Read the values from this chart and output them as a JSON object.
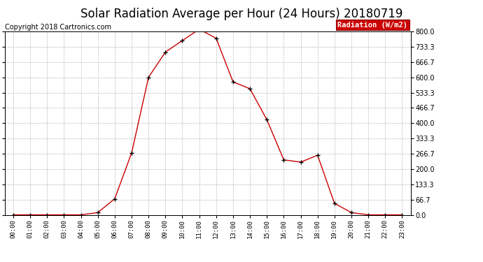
{
  "title": "Solar Radiation Average per Hour (24 Hours) 20180719",
  "copyright": "Copyright 2018 Cartronics.com",
  "legend_label": "Radiation (W/m2)",
  "hours": [
    "00:00",
    "01:00",
    "02:00",
    "03:00",
    "04:00",
    "05:00",
    "06:00",
    "07:00",
    "08:00",
    "09:00",
    "10:00",
    "11:00",
    "12:00",
    "13:00",
    "14:00",
    "15:00",
    "16:00",
    "17:00",
    "18:00",
    "19:00",
    "20:00",
    "21:00",
    "22:00",
    "23:00"
  ],
  "values": [
    0,
    0,
    0,
    0,
    0,
    10,
    70,
    270,
    600,
    710,
    760,
    810,
    770,
    580,
    550,
    415,
    240,
    230,
    260,
    50,
    10,
    0,
    0,
    0
  ],
  "line_color": "#cc0000",
  "marker": "+",
  "marker_color": "#000000",
  "bg_color": "#ffffff",
  "grid_color": "#bbbbbb",
  "ylim": [
    0,
    800
  ],
  "yticks": [
    0.0,
    66.7,
    133.3,
    200.0,
    266.7,
    333.3,
    400.0,
    466.7,
    533.3,
    600.0,
    666.7,
    733.3,
    800.0
  ],
  "title_fontsize": 12,
  "copyright_fontsize": 7,
  "legend_bg": "#cc0000",
  "legend_text_color": "#ffffff"
}
